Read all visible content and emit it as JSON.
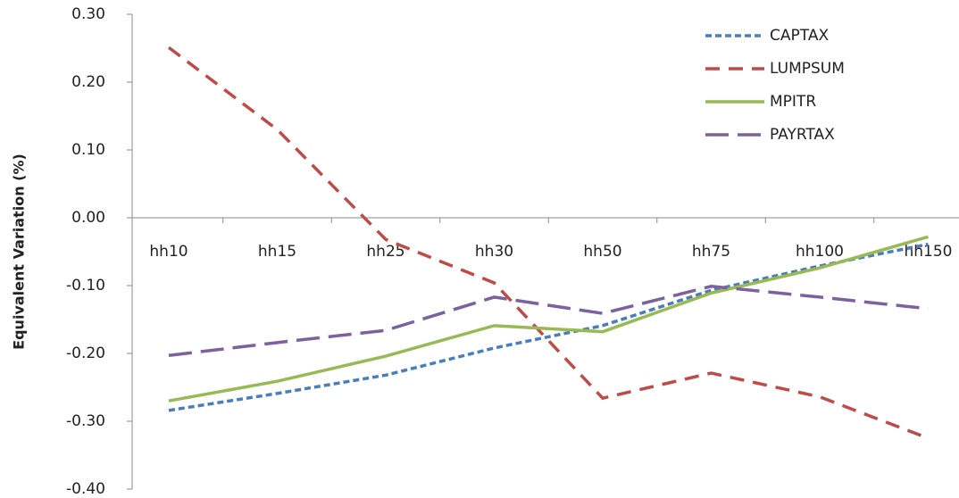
{
  "chart_data": {
    "type": "line",
    "y_label": "Equivalent Variation (%)",
    "categories": [
      "hh10",
      "hh15",
      "hh25",
      "hh30",
      "hh50",
      "hh75",
      "hh100",
      "hh150"
    ],
    "series": [
      {
        "name": "CAPTAX",
        "color": "#4a7ebb",
        "style": "dotted",
        "values": [
          -0.284,
          -0.259,
          -0.232,
          -0.192,
          -0.159,
          -0.107,
          -0.071,
          -0.039
        ]
      },
      {
        "name": "LUMPSUM",
        "color": "#be4b48",
        "style": "dashed",
        "values": [
          0.251,
          0.13,
          -0.032,
          -0.096,
          -0.266,
          -0.229,
          -0.264,
          -0.325
        ]
      },
      {
        "name": "MPITR",
        "color": "#98b954",
        "style": "solid",
        "values": [
          -0.27,
          -0.241,
          -0.204,
          -0.159,
          -0.168,
          -0.111,
          -0.074,
          -0.028
        ]
      },
      {
        "name": "PAYRTAX",
        "color": "#7d60a0",
        "style": "long-dash",
        "values": [
          -0.203,
          -0.184,
          -0.166,
          -0.117,
          -0.141,
          -0.101,
          -0.117,
          -0.134
        ]
      }
    ],
    "ylim": [
      -0.4,
      0.3
    ],
    "yticks": [
      {
        "value": -0.4,
        "label": "-0.40"
      },
      {
        "value": -0.3,
        "label": "-0.30"
      },
      {
        "value": -0.2,
        "label": "-0.20"
      },
      {
        "value": -0.1,
        "label": "-0.10"
      },
      {
        "value": 0,
        "label": "0.00"
      },
      {
        "value": 0.1,
        "label": "0.10"
      },
      {
        "value": 0.2,
        "label": "0.20"
      },
      {
        "value": 0.3,
        "label": "0.30"
      }
    ],
    "grid": false,
    "legend": "top-right"
  }
}
